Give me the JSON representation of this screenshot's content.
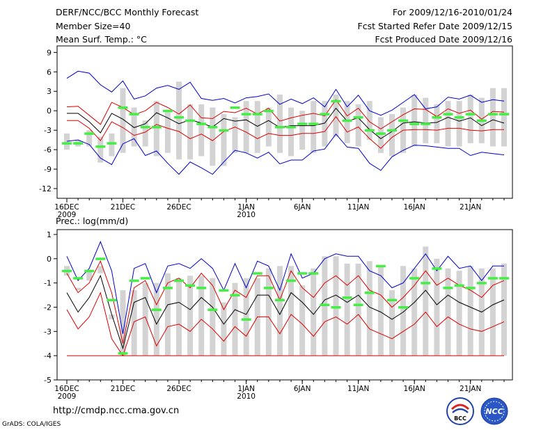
{
  "header": {
    "title": "DERF/NCC/BCC Monthly Forecast",
    "member_size": "Member Size=40",
    "variable": "Mean Surf. Temp.: °C",
    "forecast_period": "For 2009/12/16-2010/01/24",
    "fcst_started": "Fcst Started Refer Date 2009/12/15",
    "fcst_produced": "Fcst Produced Date 2009/12/16"
  },
  "footer": {
    "url": "http://cmdp.ncc.cma.gov.cn",
    "grads": "GrADS: COLA/IGES",
    "logo_bcc": "BCC",
    "logo_ncc": "NCC"
  },
  "colors": {
    "box": "#d3d3d3",
    "max_line": "#0000cc",
    "min_line": "#dd0000",
    "mean_line": "#000000",
    "observed": "#44ee44"
  },
  "chart_data": [
    {
      "type": "line",
      "title": "Mean Surf. Temp.: °C",
      "ylim": [
        -13.5,
        10
      ],
      "yticks": [
        9,
        6,
        3,
        0,
        -3,
        -6,
        -9,
        -12
      ],
      "n_days": 40,
      "xticks": [
        {
          "day": 0,
          "label": "16DEC",
          "sub": "2009"
        },
        {
          "day": 5,
          "label": "21DEC",
          "sub": ""
        },
        {
          "day": 10,
          "label": "26DEC",
          "sub": ""
        },
        {
          "day": 16,
          "label": "1JAN",
          "sub": "2010"
        },
        {
          "day": 21,
          "label": "6JAN",
          "sub": ""
        },
        {
          "day": 26,
          "label": "11JAN",
          "sub": ""
        },
        {
          "day": 31,
          "label": "16JAN",
          "sub": ""
        },
        {
          "day": 36,
          "label": "21JAN",
          "sub": ""
        }
      ],
      "box_top": [
        -3.5,
        -4.5,
        -3,
        -4,
        -3.5,
        3.5,
        0.5,
        -1.5,
        1.5,
        0,
        4.5,
        1,
        1,
        0.5,
        -0.5,
        -1,
        1.5,
        1.5,
        0.5,
        2.5,
        0.5,
        0,
        1.5,
        1.5,
        2.5,
        1.5,
        1,
        1.5,
        -1,
        -0.5,
        0.5,
        2.5,
        2,
        1,
        1.5,
        1.5,
        2.5,
        2,
        3.5,
        3.5
      ],
      "box_bottom": [
        -6,
        -5.5,
        -5.5,
        -8,
        -7,
        -6.5,
        -5.5,
        -5.5,
        -7,
        -6.5,
        -7.5,
        -7.5,
        -7,
        -8.5,
        -8.5,
        -6.5,
        -6.5,
        -6.5,
        -5.5,
        -6.5,
        -7,
        -6,
        -6.5,
        -5.5,
        -4,
        -5,
        -5.5,
        -4.5,
        -6.5,
        -7,
        -6.5,
        -5.5,
        -5,
        -5,
        -5.5,
        -5.5,
        -5,
        -5,
        -5.5,
        -5.5
      ],
      "max": [
        5,
        6.1,
        5.8,
        4,
        2.9,
        4.6,
        1.8,
        2.3,
        3.5,
        3.9,
        3.3,
        4.4,
        1.9,
        1.6,
        1.9,
        1.2,
        2,
        2.2,
        2.6,
        1,
        1.8,
        1.1,
        2,
        0.6,
        3.3,
        0.6,
        2.4,
        0,
        -0.7,
        0.1,
        1.3,
        2.5,
        0.3,
        0.6,
        2.1,
        1.8,
        2.4,
        1.3,
        1.7,
        1.5
      ],
      "upper": [
        0.6,
        0.7,
        -0.7,
        -2.1,
        1.3,
        0.5,
        -0.6,
        0,
        1.3,
        0.5,
        -0.5,
        0.9,
        -1.1,
        -1.2,
        -0.1,
        -0.3,
        0.4,
        -0.5,
        0.4,
        -1.6,
        -1.1,
        -0.7,
        -0.4,
        -0.8,
        1.7,
        -0.8,
        0.4,
        -1.7,
        -2.8,
        -1.7,
        -0.6,
        0.3,
        0.2,
        -0.9,
        0.3,
        -0.4,
        0.1,
        -1.3,
        -0.1,
        -0.2
      ],
      "mean": [
        -0.4,
        -0.4,
        -1.7,
        -3.4,
        -0.4,
        -1.3,
        -2.6,
        -2,
        -0.3,
        -1.1,
        -2,
        -1.4,
        -1.9,
        -2.5,
        -1.2,
        -1.6,
        -1.4,
        -2.4,
        -1.5,
        -2.6,
        -2.3,
        -2.3,
        -2.3,
        -1.9,
        0.4,
        -1.6,
        -1.1,
        -2.9,
        -4.3,
        -3.2,
        -1.9,
        -1.7,
        -1.9,
        -1.8,
        -1,
        -1.6,
        -1.1,
        -2.3,
        -1.4,
        -1.9
      ],
      "lower": [
        -1.5,
        -1.5,
        -2.7,
        -4.6,
        -1.7,
        -2.6,
        -3.8,
        -3.3,
        -2.1,
        -2.7,
        -3.2,
        -4.3,
        -3.6,
        -4.6,
        -3.2,
        -2.5,
        -3.3,
        -4.3,
        -3.5,
        -3.8,
        -3.8,
        -3.5,
        -3.5,
        -3.2,
        -0.9,
        -3.3,
        -2.5,
        -4.3,
        -5.8,
        -4.1,
        -3,
        -2.9,
        -2.9,
        -3,
        -2.7,
        -2.7,
        -3,
        -3.1,
        -2.9,
        -2.9
      ],
      "min": [
        -4.7,
        -4.5,
        -5.2,
        -7.3,
        -8.3,
        -5.1,
        -4.3,
        -6.9,
        -6.2,
        -8.1,
        -9.8,
        -7.9,
        -8.8,
        -9.8,
        -7.9,
        -6.1,
        -6.5,
        -7.3,
        -6.4,
        -8.2,
        -7.6,
        -7.6,
        -6.2,
        -5.9,
        -3.6,
        -5.6,
        -5.8,
        -8.1,
        -9.2,
        -7.1,
        -6.1,
        -5.3,
        -5.4,
        -5.6,
        -5.8,
        -5.8,
        -6.9,
        -6.4,
        -6.6,
        -6.8
      ],
      "observed": [
        -5,
        -5,
        -3.5,
        -5.5,
        -5,
        0.5,
        -0.5,
        -2.5,
        -2.5,
        0,
        -1,
        -1.5,
        -2,
        -2.5,
        -3,
        0.5,
        -0.5,
        -0.5,
        0,
        -2.5,
        -2.5,
        -2,
        -2,
        -0.5,
        1.5,
        -1.5,
        -1,
        -3,
        -3.5,
        -3,
        -1.5,
        -2,
        -2,
        -1,
        -0.5,
        -1,
        -0.5,
        -1.5,
        -0.5,
        -0.5
      ]
    },
    {
      "type": "line",
      "title": "Prec.: log(mm/d)",
      "ylim": [
        -5,
        1.2
      ],
      "yticks": [
        1,
        0,
        -1,
        -2,
        -3,
        -4,
        -5
      ],
      "n_days": 40,
      "xticks": [
        {
          "day": 0,
          "label": "16DEC",
          "sub": "2009"
        },
        {
          "day": 5,
          "label": "21DEC",
          "sub": ""
        },
        {
          "day": 10,
          "label": "26DEC",
          "sub": ""
        },
        {
          "day": 16,
          "label": "1JAN",
          "sub": "2010"
        },
        {
          "day": 21,
          "label": "6JAN",
          "sub": ""
        },
        {
          "day": 26,
          "label": "11JAN",
          "sub": ""
        },
        {
          "day": 31,
          "label": "16JAN",
          "sub": ""
        },
        {
          "day": 36,
          "label": "21JAN",
          "sub": ""
        }
      ],
      "box_top": [
        -0.3,
        -1.3,
        -0.5,
        -0.3,
        -2.3,
        -1.3,
        -1.3,
        -1,
        -1,
        -0.6,
        -0.8,
        -0.7,
        -0.7,
        -0.8,
        -1.8,
        -1,
        -0.8,
        -0.8,
        -0.4,
        -0.3,
        -0.3,
        -1.1,
        -0.4,
        0.1,
        0.1,
        -0.2,
        -0.2,
        -0.1,
        -0.3,
        -1.3,
        -0.3,
        -0.4,
        0.5,
        0,
        -0.4,
        -0.5,
        -0.3,
        -0.4,
        -0.4,
        -0.2
      ],
      "box_bottom": [
        -0.7,
        -1.2,
        -0.9,
        -0.6,
        -2.5,
        -4,
        -4,
        -4,
        -4,
        -4,
        -4,
        -4,
        -4,
        -4,
        -4,
        -4,
        -4,
        -4,
        -4,
        -4,
        -4,
        -4,
        -4,
        -4,
        -4,
        -4,
        -4,
        -4,
        -4,
        -4,
        -4,
        -4,
        -4,
        -4,
        -4,
        -4,
        -4,
        -4,
        -4,
        -4
      ],
      "max": [
        0.1,
        -0.9,
        -0.4,
        0.7,
        -0.5,
        -3.1,
        -0.4,
        -0.2,
        -1.4,
        -0.3,
        -0.2,
        -0.4,
        0,
        -0.4,
        -1.3,
        -0.2,
        -1.2,
        -0.1,
        -0.3,
        -1.3,
        0.2,
        -0.8,
        -0.6,
        0,
        0.2,
        0.1,
        0.1,
        -0.5,
        -0.7,
        -1.2,
        -1.0,
        -0.4,
        0.2,
        -0.5,
        0.1,
        -0.4,
        -0.3,
        -0.9,
        -0.3,
        -0.3
      ],
      "upper": [
        -0.6,
        -1.4,
        -1.0,
        -0.1,
        -1.4,
        -3.5,
        -1.2,
        -0.9,
        -1.9,
        -1.0,
        -0.8,
        -1.2,
        -0.6,
        -1.1,
        -2.1,
        -1.3,
        -1.6,
        -0.7,
        -0.7,
        -1.7,
        -0.5,
        -1.2,
        -1.6,
        -1.0,
        -0.7,
        -1.1,
        -0.7,
        -1.3,
        -1.5,
        -2.0,
        -1.6,
        -1.1,
        -0.5,
        -1.1,
        -0.8,
        -1.1,
        -1.3,
        -1.6,
        -1.1,
        -0.9
      ],
      "mean": [
        -1.4,
        -2.2,
        -1.6,
        -0.7,
        -2.3,
        -3.7,
        -1.8,
        -1.6,
        -2.7,
        -1.9,
        -1.8,
        -2.1,
        -1.6,
        -2.0,
        -2.7,
        -2.1,
        -2.3,
        -1.5,
        -1.5,
        -2.3,
        -1.4,
        -1.8,
        -2.3,
        -1.7,
        -1.5,
        -1.8,
        -1.5,
        -2.0,
        -2.2,
        -2.5,
        -2.2,
        -1.8,
        -1.3,
        -1.9,
        -1.5,
        -1.8,
        -2.0,
        -2.2,
        -1.9,
        -1.7
      ],
      "lower": [
        -2.1,
        -2.9,
        -2.4,
        -1.4,
        -3.3,
        -4,
        -2.6,
        -2.4,
        -3.6,
        -2.8,
        -2.7,
        -3.0,
        -2.5,
        -2.9,
        -3.4,
        -2.8,
        -3.2,
        -2.4,
        -2.4,
        -3.1,
        -2.3,
        -2.7,
        -3.2,
        -2.6,
        -2.4,
        -2.7,
        -2.3,
        -2.9,
        -3.1,
        -3.3,
        -3.0,
        -2.7,
        -2.2,
        -2.8,
        -2.4,
        -2.7,
        -2.9,
        -3.0,
        -2.8,
        -2.6
      ],
      "min": [
        -4,
        -4,
        -4,
        -4,
        -4,
        -4,
        -4,
        -4,
        -4,
        -4,
        -4,
        -4,
        -4,
        -4,
        -4,
        -4,
        -4,
        -4,
        -4,
        -4,
        -4,
        -4,
        -4,
        -4,
        -4,
        -4,
        -4,
        -4,
        -4,
        -4,
        -4,
        -4,
        -4,
        -4,
        -4,
        -4,
        -4,
        -4,
        -4,
        -4
      ],
      "observed": [
        -0.5,
        -0.8,
        -0.5,
        0,
        -1.7,
        -3.9,
        -0.9,
        -0.8,
        -2.1,
        -1.2,
        -0.9,
        -1.1,
        -1.2,
        -2.1,
        -1.3,
        -1.5,
        -2.5,
        -0.6,
        -1.2,
        -1.7,
        -0.9,
        -0.6,
        -0.6,
        -1.9,
        -2,
        -1.6,
        -1.9,
        -1.4,
        -0.3,
        -1.7,
        -2,
        -0.8,
        -1,
        -0.4,
        -1.2,
        -1.1,
        -1.2,
        -1,
        -0.8,
        -0.8
      ]
    }
  ]
}
